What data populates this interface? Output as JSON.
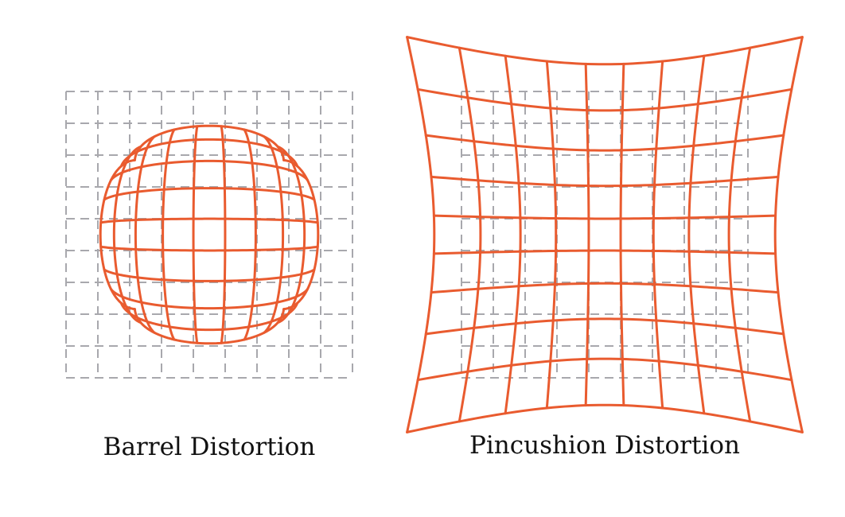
{
  "colors": {
    "distorted_grid": "#e95b2f",
    "reference_grid": "#a8a8ad",
    "background": "#ffffff",
    "text": "#111111"
  },
  "panels": [
    {
      "id": "barrel",
      "caption": "Barrel Distortion",
      "grid_divisions": 9,
      "distortion": "barrel",
      "strength": -0.24
    },
    {
      "id": "pincushion",
      "caption": "Pincushion Distortion",
      "grid_divisions": 9,
      "distortion": "pincushion",
      "strength": 0.19
    }
  ]
}
